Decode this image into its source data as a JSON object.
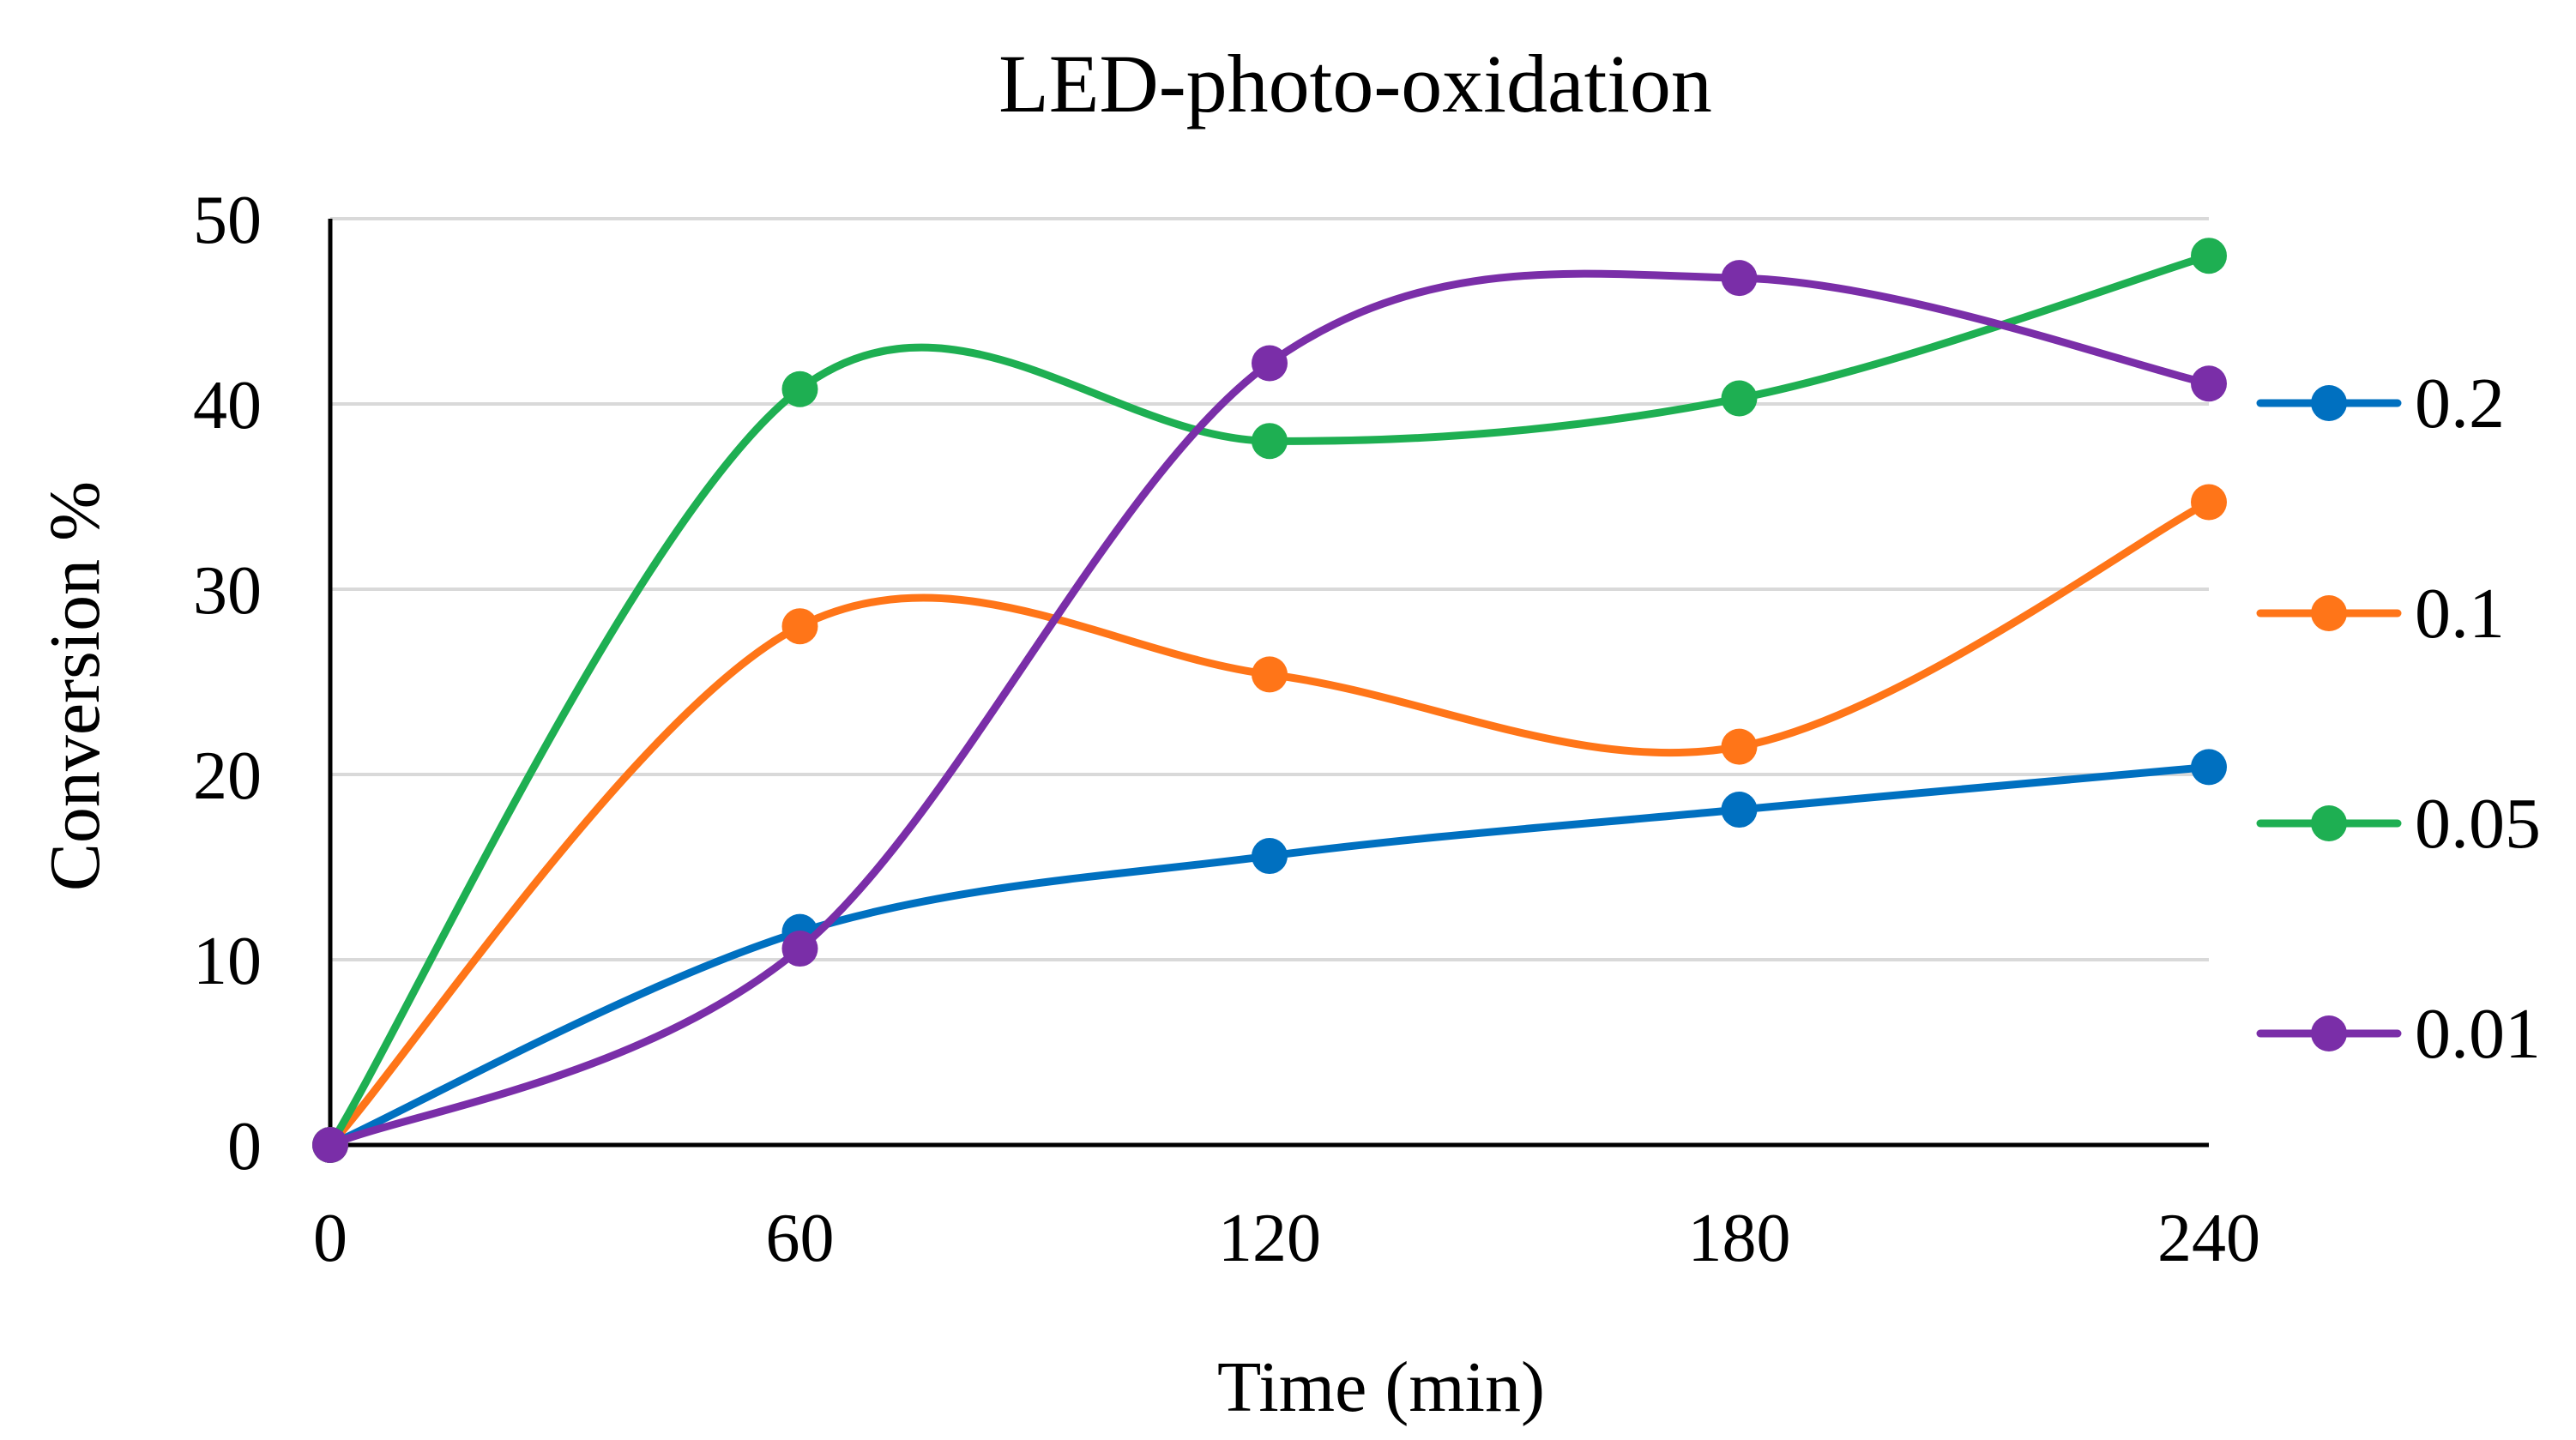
{
  "chart_data": {
    "type": "line",
    "title": "LED-photo-oxidation",
    "xlabel": "Time (min)",
    "ylabel": "Conversion %",
    "x": [
      0,
      60,
      120,
      180,
      240
    ],
    "xlim": [
      0,
      240
    ],
    "ylim": [
      0,
      50
    ],
    "x_ticks": [
      "0",
      "60",
      "120",
      "180",
      "240"
    ],
    "y_ticks": [
      "0",
      "10",
      "20",
      "30",
      "40",
      "50"
    ],
    "grid": true,
    "smooth": true,
    "legend_position": "right",
    "series": [
      {
        "name": "0.2",
        "color": "#0070C0",
        "values": [
          0,
          11.5,
          15.6,
          18.1,
          20.4
        ]
      },
      {
        "name": "0.1",
        "color": "#FF7518",
        "values": [
          0,
          28.0,
          25.4,
          21.5,
          34.7
        ]
      },
      {
        "name": "0.05",
        "color": "#1EAF52",
        "values": [
          0,
          40.8,
          38.0,
          40.3,
          48.0
        ]
      },
      {
        "name": "0.01",
        "color": "#7A2EA8",
        "values": [
          0,
          10.6,
          42.2,
          46.8,
          41.1
        ]
      }
    ]
  }
}
